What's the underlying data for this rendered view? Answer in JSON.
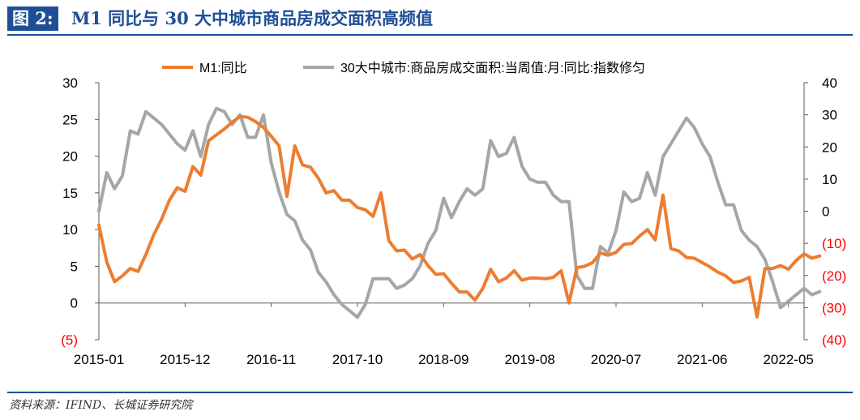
{
  "figure": {
    "label": "图 2:",
    "title": "M1 同比与 30 大中城市商品房成交面积高频值",
    "source": "资料来源：IFIND、长城证券研究院"
  },
  "colors": {
    "brand": "#1f4e96",
    "m1": "#ed7d31",
    "area": "#a6a6a6",
    "negative_label": "#ff0000"
  },
  "chart_data": {
    "type": "line",
    "x_ticks": [
      "2015-01",
      "2015-12",
      "2016-11",
      "2017-10",
      "2018-09",
      "2019-08",
      "2020-07",
      "2021-06",
      "2022-05"
    ],
    "x_range": [
      "2015-01",
      "2022-07"
    ],
    "left_axis": {
      "ylim": [
        -5,
        30
      ],
      "ticks": [
        "(5)",
        "0",
        "5",
        "10",
        "15",
        "20",
        "25",
        "30"
      ]
    },
    "right_axis": {
      "ylim": [
        -40,
        40
      ],
      "ticks": [
        "(40)",
        "(30)",
        "(20)",
        "(10)",
        "0",
        "10",
        "20",
        "30",
        "40"
      ]
    },
    "legend": {
      "position": "top"
    },
    "grid": false,
    "series": [
      {
        "name": "M1:同比",
        "axis": "left",
        "color": "#ed7d31",
        "points": [
          [
            "2015-01",
            10.6
          ],
          [
            "2015-02",
            5.6
          ],
          [
            "2015-03",
            2.9
          ],
          [
            "2015-04",
            3.7
          ],
          [
            "2015-05",
            4.7
          ],
          [
            "2015-06",
            4.3
          ],
          [
            "2015-07",
            6.6
          ],
          [
            "2015-08",
            9.3
          ],
          [
            "2015-09",
            11.4
          ],
          [
            "2015-10",
            14.0
          ],
          [
            "2015-11",
            15.7
          ],
          [
            "2015-12",
            15.2
          ],
          [
            "2016-01",
            18.6
          ],
          [
            "2016-02",
            17.4
          ],
          [
            "2016-03",
            22.1
          ],
          [
            "2016-04",
            22.9
          ],
          [
            "2016-05",
            23.7
          ],
          [
            "2016-06",
            24.6
          ],
          [
            "2016-07",
            25.4
          ],
          [
            "2016-08",
            25.3
          ],
          [
            "2016-09",
            24.7
          ],
          [
            "2016-10",
            23.9
          ],
          [
            "2016-11",
            22.7
          ],
          [
            "2016-12",
            21.4
          ],
          [
            "2017-01",
            14.5
          ],
          [
            "2017-02",
            21.4
          ],
          [
            "2017-03",
            18.8
          ],
          [
            "2017-04",
            18.5
          ],
          [
            "2017-05",
            17.0
          ],
          [
            "2017-06",
            15.0
          ],
          [
            "2017-07",
            15.3
          ],
          [
            "2017-08",
            14.0
          ],
          [
            "2017-09",
            14.0
          ],
          [
            "2017-10",
            13.0
          ],
          [
            "2017-11",
            12.7
          ],
          [
            "2017-12",
            11.8
          ],
          [
            "2018-01",
            15.0
          ],
          [
            "2018-02",
            8.5
          ],
          [
            "2018-03",
            7.1
          ],
          [
            "2018-04",
            7.2
          ],
          [
            "2018-05",
            6.0
          ],
          [
            "2018-06",
            6.6
          ],
          [
            "2018-07",
            5.1
          ],
          [
            "2018-08",
            3.9
          ],
          [
            "2018-09",
            4.0
          ],
          [
            "2018-10",
            2.7
          ],
          [
            "2018-11",
            1.5
          ],
          [
            "2018-12",
            1.5
          ],
          [
            "2019-01",
            0.4
          ],
          [
            "2019-02",
            2.0
          ],
          [
            "2019-03",
            4.6
          ],
          [
            "2019-04",
            2.9
          ],
          [
            "2019-05",
            3.4
          ],
          [
            "2019-06",
            4.4
          ],
          [
            "2019-07",
            3.1
          ],
          [
            "2019-08",
            3.4
          ],
          [
            "2019-09",
            3.4
          ],
          [
            "2019-10",
            3.3
          ],
          [
            "2019-11",
            3.5
          ],
          [
            "2019-12",
            4.4
          ],
          [
            "2020-01",
            0.0
          ],
          [
            "2020-02",
            4.8
          ],
          [
            "2020-03",
            5.0
          ],
          [
            "2020-04",
            5.5
          ],
          [
            "2020-05",
            6.8
          ],
          [
            "2020-06",
            6.5
          ],
          [
            "2020-07",
            6.9
          ],
          [
            "2020-08",
            8.0
          ],
          [
            "2020-09",
            8.1
          ],
          [
            "2020-10",
            9.1
          ],
          [
            "2020-11",
            10.0
          ],
          [
            "2020-12",
            8.6
          ],
          [
            "2021-01",
            14.7
          ],
          [
            "2021-02",
            7.4
          ],
          [
            "2021-03",
            7.1
          ],
          [
            "2021-04",
            6.2
          ],
          [
            "2021-05",
            6.1
          ],
          [
            "2021-06",
            5.5
          ],
          [
            "2021-07",
            4.9
          ],
          [
            "2021-08",
            4.2
          ],
          [
            "2021-09",
            3.7
          ],
          [
            "2021-10",
            2.8
          ],
          [
            "2021-11",
            3.0
          ],
          [
            "2021-12",
            3.5
          ],
          [
            "2022-01",
            -1.9
          ],
          [
            "2022-02",
            4.7
          ],
          [
            "2022-03",
            4.7
          ],
          [
            "2022-04",
            5.1
          ],
          [
            "2022-05",
            4.6
          ],
          [
            "2022-06",
            5.8
          ],
          [
            "2022-07",
            6.7
          ],
          [
            "2022-08",
            6.1
          ],
          [
            "2022-09",
            6.4
          ]
        ]
      },
      {
        "name": "30大中城市:商品房成交面积:当周值:月:同比:指数修匀",
        "axis": "right",
        "color": "#a6a6a6",
        "points": [
          [
            "2015-01",
            0.0
          ],
          [
            "2015-02",
            12.0
          ],
          [
            "2015-03",
            7.0
          ],
          [
            "2015-04",
            11.0
          ],
          [
            "2015-05",
            25.0
          ],
          [
            "2015-06",
            24.0
          ],
          [
            "2015-07",
            31.0
          ],
          [
            "2015-08",
            29.0
          ],
          [
            "2015-09",
            27.0
          ],
          [
            "2015-10",
            24.0
          ],
          [
            "2015-11",
            21.0
          ],
          [
            "2015-12",
            19.0
          ],
          [
            "2016-01",
            25.0
          ],
          [
            "2016-02",
            17.0
          ],
          [
            "2016-03",
            27.0
          ],
          [
            "2016-04",
            32.0
          ],
          [
            "2016-05",
            31.0
          ],
          [
            "2016-06",
            27.0
          ],
          [
            "2016-07",
            30.0
          ],
          [
            "2016-08",
            23.0
          ],
          [
            "2016-09",
            23.0
          ],
          [
            "2016-10",
            30.0
          ],
          [
            "2016-11",
            15.0
          ],
          [
            "2016-12",
            6.0
          ],
          [
            "2017-01",
            -1.0
          ],
          [
            "2017-02",
            -3.0
          ],
          [
            "2017-03",
            -9.0
          ],
          [
            "2017-04",
            -12.0
          ],
          [
            "2017-05",
            -19.0
          ],
          [
            "2017-06",
            -22.0
          ],
          [
            "2017-07",
            -26.0
          ],
          [
            "2017-08",
            -29.0
          ],
          [
            "2017-09",
            -31.0
          ],
          [
            "2017-10",
            -33.0
          ],
          [
            "2017-11",
            -29.0
          ],
          [
            "2017-12",
            -21.0
          ],
          [
            "2018-01",
            -21.0
          ],
          [
            "2018-02",
            -21.0
          ],
          [
            "2018-03",
            -24.0
          ],
          [
            "2018-04",
            -23.0
          ],
          [
            "2018-05",
            -21.0
          ],
          [
            "2018-06",
            -17.0
          ],
          [
            "2018-07",
            -10.0
          ],
          [
            "2018-08",
            -6.0
          ],
          [
            "2018-09",
            4.0
          ],
          [
            "2018-10",
            -2.0
          ],
          [
            "2018-11",
            3.0
          ],
          [
            "2018-12",
            7.0
          ],
          [
            "2019-01",
            5.0
          ],
          [
            "2019-02",
            7.0
          ],
          [
            "2019-03",
            22.0
          ],
          [
            "2019-04",
            17.0
          ],
          [
            "2019-05",
            18.0
          ],
          [
            "2019-06",
            23.0
          ],
          [
            "2019-07",
            14.0
          ],
          [
            "2019-08",
            10.0
          ],
          [
            "2019-09",
            9.0
          ],
          [
            "2019-10",
            9.0
          ],
          [
            "2019-11",
            5.0
          ],
          [
            "2019-12",
            3.0
          ],
          [
            "2020-01",
            3.0
          ],
          [
            "2020-02",
            -20.0
          ],
          [
            "2020-03",
            -24.0
          ],
          [
            "2020-04",
            -24.0
          ],
          [
            "2020-05",
            -11.0
          ],
          [
            "2020-06",
            -13.0
          ],
          [
            "2020-07",
            -6.0
          ],
          [
            "2020-08",
            6.0
          ],
          [
            "2020-09",
            3.0
          ],
          [
            "2020-10",
            4.0
          ],
          [
            "2020-11",
            12.0
          ],
          [
            "2020-12",
            5.0
          ],
          [
            "2021-01",
            17.0
          ],
          [
            "2021-02",
            21.0
          ],
          [
            "2021-03",
            25.0
          ],
          [
            "2021-04",
            29.0
          ],
          [
            "2021-05",
            26.0
          ],
          [
            "2021-06",
            21.0
          ],
          [
            "2021-07",
            17.0
          ],
          [
            "2021-08",
            9.0
          ],
          [
            "2021-09",
            2.0
          ],
          [
            "2021-10",
            2.0
          ],
          [
            "2021-11",
            -6.0
          ],
          [
            "2021-12",
            -9.0
          ],
          [
            "2022-01",
            -11.0
          ],
          [
            "2022-02",
            -15.0
          ],
          [
            "2022-03",
            -22.0
          ],
          [
            "2022-04",
            -30.0
          ],
          [
            "2022-05",
            -28.0
          ],
          [
            "2022-06",
            -26.0
          ],
          [
            "2022-07",
            -24.0
          ],
          [
            "2022-08",
            -26.0
          ],
          [
            "2022-09",
            -25.0
          ]
        ]
      }
    ]
  }
}
